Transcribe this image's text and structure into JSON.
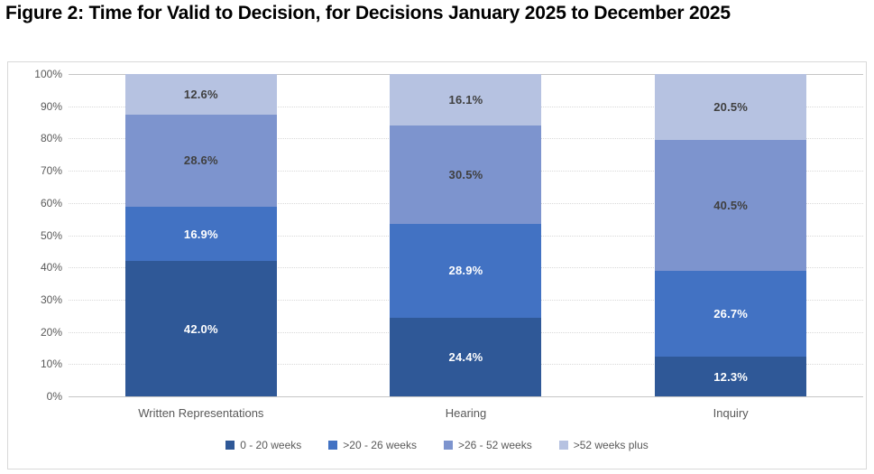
{
  "title": "Figure 2: Time for Valid to Decision, for Decisions January 2025 to December 2025",
  "chart_data": {
    "type": "bar",
    "subtype": "stacked-100-percent",
    "categories": [
      "Written Representations",
      "Hearing",
      "Inquiry"
    ],
    "series": [
      {
        "name": "0 - 20 weeks",
        "color": "#2f5897",
        "label_color": "#ffffff",
        "values": [
          42.0,
          24.4,
          12.3
        ]
      },
      {
        "name": ">20 - 26 weeks",
        "color": "#4272c3",
        "label_color": "#ffffff",
        "values": [
          16.9,
          28.9,
          26.7
        ]
      },
      {
        "name": ">26 - 52 weeks",
        "color": "#7d94ce",
        "label_color": "#404040",
        "values": [
          28.6,
          30.5,
          40.5
        ]
      },
      {
        "name": ">52 weeks plus",
        "color": "#b6c2e1",
        "label_color": "#404040",
        "values": [
          12.6,
          16.1,
          20.5
        ]
      }
    ],
    "data_label_suffix": "%",
    "y_axis": {
      "min": 0,
      "max": 100,
      "step": 10,
      "tick_labels": [
        "0%",
        "10%",
        "20%",
        "30%",
        "40%",
        "50%",
        "60%",
        "70%",
        "80%",
        "90%",
        "100%"
      ]
    },
    "grid": true,
    "legend_position": "bottom"
  }
}
